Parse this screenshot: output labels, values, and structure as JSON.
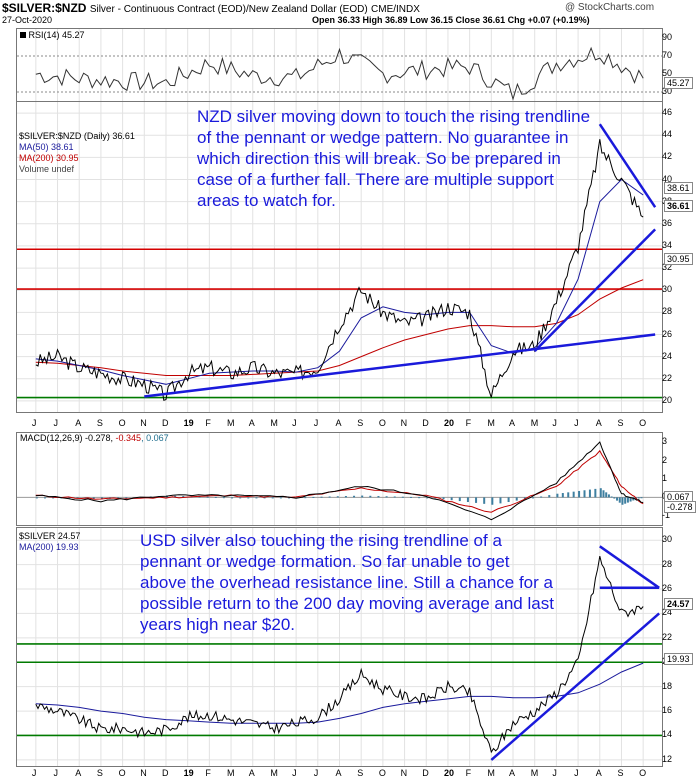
{
  "header": {
    "symbol": "$SILVER:$NZD",
    "description": "Silver - Continuous Contract (EOD)/New Zealand Dollar (EOD)",
    "exchange": "CME/INDX",
    "watermark": "@ StockCharts.com",
    "date": "27-Oct-2020",
    "ohlc": "Open 36.33  High 36.89  Low 36.15  Close 36.61  Chg +0.07 (+0.19%)"
  },
  "panels": {
    "rsi": {
      "label": "RSI(14) 45.27",
      "ticks": [
        "90",
        "70",
        "50",
        "30"
      ],
      "tag": "45.27"
    },
    "nzd": {
      "legend": [
        "$SILVER:$NZD (Daily) 36.61",
        "MA(50) 38.61",
        "MA(200) 30.95",
        "Volume undef"
      ],
      "ticks": [
        "46",
        "44",
        "42",
        "40",
        "38",
        "36",
        "34",
        "32",
        "30",
        "28",
        "26",
        "24",
        "22",
        "20"
      ],
      "tags": {
        "ma50": "38.61",
        "close": "36.61",
        "ma200": "30.95"
      },
      "note": "NZD silver moving down to touch the rising trendline of the pennant or wedge pattern. No guarantee in which direction this will break. So be prepared in case of a further fall. There are multiple support areas to watch for."
    },
    "macd": {
      "label_main": "MACD(12,26,9) -0.278, ",
      "label_signal": "-0.345",
      "label_hist": ", 0.067",
      "ticks": [
        "3",
        "2",
        "1",
        "0",
        "-1"
      ],
      "tags": {
        "hist": "0.067",
        "macd": "-0.278"
      }
    },
    "usd": {
      "legend": [
        "$SILVER 24.57",
        "MA(200) 19.93"
      ],
      "ticks": [
        "30",
        "28",
        "26",
        "24",
        "22",
        "20",
        "18",
        "16",
        "14",
        "12"
      ],
      "tags": {
        "close": "24.57",
        "ma200": "19.93"
      },
      "note": "USD silver also touching the rising trendline of a pennant or wedge formation. So far unable to get above the overhead resistance line. Still a chance for a possible return to the 200 day moving average and last years high near $20."
    }
  },
  "x_axis": [
    "J",
    "J",
    "A",
    "S",
    "O",
    "N",
    "D",
    "19",
    "F",
    "M",
    "A",
    "M",
    "J",
    "J",
    "A",
    "S",
    "O",
    "N",
    "D",
    "20",
    "F",
    "M",
    "A",
    "M",
    "J",
    "J",
    "A",
    "S",
    "O"
  ],
  "colors": {
    "price": "#000000",
    "ma50": "#1a1a9c",
    "ma200": "#c00000",
    "annotation": "#1a1adb",
    "support": "#d40000",
    "green": "#007a00"
  },
  "chart_data": [
    {
      "type": "line",
      "title": "$SILVER:$NZD (Daily)",
      "ylim": [
        19,
        47
      ],
      "x": [
        "2018-06",
        "2018-07",
        "2018-08",
        "2018-09",
        "2018-10",
        "2018-11",
        "2018-12",
        "2019-01",
        "2019-02",
        "2019-03",
        "2019-04",
        "2019-05",
        "2019-06",
        "2019-07",
        "2019-08",
        "2019-09",
        "2019-10",
        "2019-11",
        "2019-12",
        "2020-01",
        "2020-02",
        "2020-03",
        "2020-04",
        "2020-05",
        "2020-06",
        "2020-07",
        "2020-08",
        "2020-09",
        "2020-10"
      ],
      "series": [
        {
          "name": "$SILVER:$NZD",
          "values": [
            23.5,
            24,
            23,
            22.5,
            22,
            21.5,
            20.5,
            22.5,
            23,
            22.5,
            23,
            22.5,
            22.5,
            23,
            27,
            30,
            28,
            27,
            27.5,
            28.5,
            28,
            20.5,
            24.5,
            25,
            29,
            34,
            43,
            40,
            36.6
          ]
        },
        {
          "name": "MA(50)",
          "values": [
            23.8,
            23.6,
            23.2,
            22.8,
            22.3,
            21.9,
            21.5,
            22,
            22.5,
            22.6,
            22.7,
            22.7,
            22.6,
            23,
            24.5,
            27.5,
            28.5,
            28,
            27.8,
            28,
            28,
            25,
            24.3,
            24.8,
            27,
            31,
            38,
            40,
            38.6
          ]
        },
        {
          "name": "MA(200)",
          "values": [
            23.5,
            23.4,
            23.2,
            23,
            22.7,
            22.5,
            22.3,
            22.3,
            22.3,
            22.3,
            22.4,
            22.5,
            22.6,
            22.7,
            23.2,
            24,
            24.8,
            25.5,
            26,
            26.5,
            26.8,
            26.8,
            26.7,
            26.7,
            27,
            27.8,
            29.2,
            30.2,
            30.95
          ]
        }
      ],
      "support_levels": [
        {
          "value": 33.7,
          "color": "red"
        },
        {
          "value": 30.1,
          "color": "red"
        },
        {
          "value": 20.3,
          "color": "green"
        }
      ],
      "trendlines": [
        [
          [
            "2018-11",
            20.4
          ],
          [
            "2020-10",
            26
          ]
        ],
        [
          [
            "2020-05",
            24.5
          ],
          [
            "2020-10",
            35.5
          ]
        ],
        [
          [
            "2020-08",
            45
          ],
          [
            "2020-10",
            37.5
          ]
        ]
      ]
    },
    {
      "type": "line",
      "title": "RSI(14)",
      "ylim": [
        20,
        100
      ],
      "x": [
        "2018-06",
        "2018-08",
        "2018-10",
        "2018-12",
        "2019-02",
        "2019-04",
        "2019-06",
        "2019-08",
        "2019-10",
        "2019-12",
        "2020-02",
        "2020-04",
        "2020-06",
        "2020-08",
        "2020-10"
      ],
      "series": [
        {
          "name": "RSI(14)",
          "values": [
            50,
            45,
            42,
            40,
            62,
            48,
            46,
            72,
            50,
            55,
            58,
            28,
            62,
            75,
            45.27
          ]
        }
      ]
    },
    {
      "type": "line",
      "title": "MACD(12,26,9)",
      "ylim": [
        -1.5,
        3.5
      ],
      "x": [
        "2018-06",
        "2018-09",
        "2018-12",
        "2019-03",
        "2019-06",
        "2019-09",
        "2019-12",
        "2020-03",
        "2020-06",
        "2020-08",
        "2020-09",
        "2020-10"
      ],
      "series": [
        {
          "name": "MACD",
          "values": [
            0.1,
            -0.2,
            0.1,
            0.1,
            0.0,
            0.6,
            0.1,
            -1.2,
            0.8,
            3.0,
            0.2,
            -0.278
          ]
        },
        {
          "name": "Signal",
          "values": [
            0.1,
            -0.1,
            0.0,
            0.1,
            0.0,
            0.5,
            0.1,
            -0.8,
            0.6,
            2.5,
            0.6,
            -0.345
          ]
        }
      ]
    },
    {
      "type": "line",
      "title": "$SILVER",
      "ylim": [
        11.5,
        31
      ],
      "x": [
        "2018-06",
        "2018-07",
        "2018-08",
        "2018-09",
        "2018-10",
        "2018-11",
        "2018-12",
        "2019-01",
        "2019-02",
        "2019-03",
        "2019-04",
        "2019-05",
        "2019-06",
        "2019-07",
        "2019-08",
        "2019-09",
        "2019-10",
        "2019-11",
        "2019-12",
        "2020-01",
        "2020-02",
        "2020-03",
        "2020-04",
        "2020-05",
        "2020-06",
        "2020-07",
        "2020-08",
        "2020-09",
        "2020-10"
      ],
      "series": [
        {
          "name": "$SILVER",
          "values": [
            16.5,
            16,
            15.3,
            14.5,
            14.6,
            14.2,
            14.5,
            15.5,
            15.7,
            15.3,
            15,
            14.6,
            15,
            15.5,
            17,
            19,
            17.8,
            17.2,
            17,
            18,
            17.5,
            12.5,
            15,
            16,
            17.5,
            20,
            28.5,
            24,
            24.57
          ]
        },
        {
          "name": "MA(200)",
          "values": [
            16.6,
            16.5,
            16.3,
            16,
            15.8,
            15.5,
            15.3,
            15.2,
            15.1,
            15,
            15,
            15,
            15,
            15.1,
            15.4,
            15.8,
            16.3,
            16.6,
            16.8,
            17,
            17.2,
            17.2,
            17.1,
            17.1,
            17.2,
            17.5,
            18.2,
            19.2,
            19.93
          ]
        }
      ],
      "support_levels": [
        {
          "value": 21.5,
          "color": "green"
        },
        {
          "value": 20,
          "color": "green"
        },
        {
          "value": 14,
          "color": "green"
        }
      ],
      "trendlines": [
        [
          [
            "2020-03",
            12
          ],
          [
            "2020-10",
            24
          ]
        ],
        [
          [
            "2020-08",
            29.5
          ],
          [
            "2020-10",
            26.1
          ]
        ],
        [
          [
            "2020-08",
            26.1
          ],
          [
            "2020-10",
            26.1
          ]
        ]
      ]
    }
  ]
}
